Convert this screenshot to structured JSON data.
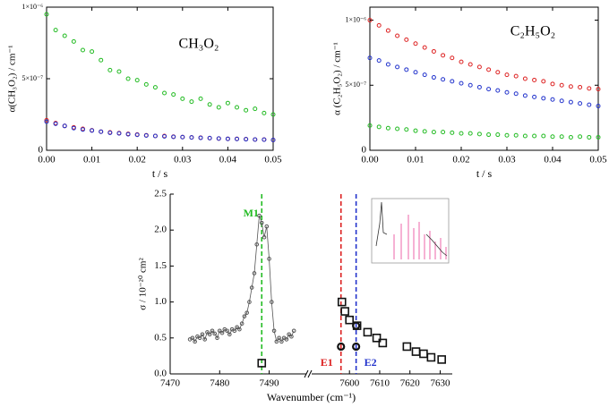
{
  "chart_data": [
    {
      "type": "scatter",
      "annotation": "CH₃O₂",
      "xlabel": "t / s",
      "ylabel": "α(CH₃O₂) / cm⁻¹",
      "xlim": [
        0,
        0.05
      ],
      "xticks": [
        {
          "value": 0,
          "label": "0.00"
        },
        0.01,
        0.02,
        0.03,
        0.04,
        0.05
      ],
      "ylim": [
        0,
        1e-06
      ],
      "yticks": [
        0,
        {
          "value": 5e-07,
          "label": "5×10⁻⁷"
        },
        {
          "value": 1e-06,
          "label": "1×10⁻⁶"
        }
      ],
      "x": [
        0,
        0.002,
        0.004,
        0.006,
        0.008,
        0.01,
        0.012,
        0.014,
        0.016,
        0.018,
        0.02,
        0.022,
        0.024,
        0.026,
        0.028,
        0.03,
        0.032,
        0.034,
        0.036,
        0.038,
        0.04,
        0.042,
        0.044,
        0.046,
        0.048,
        0.05
      ],
      "series": [
        {
          "color": "#22bb22",
          "values": [
            9.5e-07,
            8.4e-07,
            8e-07,
            7.6e-07,
            7e-07,
            6.9e-07,
            6.3e-07,
            5.6e-07,
            5.5e-07,
            5e-07,
            4.9e-07,
            4.6e-07,
            4.4e-07,
            4e-07,
            3.9e-07,
            3.6e-07,
            3.4e-07,
            3.6e-07,
            3.2e-07,
            3e-07,
            3.3e-07,
            3e-07,
            2.8e-07,
            2.9e-07,
            2.6e-07,
            2.5e-07
          ]
        },
        {
          "color": "#dd2222",
          "values": [
            2.1e-07,
            1.9e-07,
            1.7e-07,
            1.6e-07,
            1.5e-07,
            1.4e-07,
            1.3e-07,
            1.25e-07,
            1.2e-07,
            1.15e-07,
            1.1e-07,
            1.05e-07,
            1e-07,
            1e-07,
            9.5e-08,
            9.2e-08,
            9e-08,
            8.8e-08,
            8.5e-08,
            8.2e-08,
            8e-08,
            8e-08,
            7.8e-08,
            7.5e-08,
            7.5e-08,
            7.2e-08
          ]
        },
        {
          "color": "#2233cc",
          "values": [
            2e-07,
            1.85e-07,
            1.7e-07,
            1.55e-07,
            1.45e-07,
            1.38e-07,
            1.3e-07,
            1.22e-07,
            1.18e-07,
            1.12e-07,
            1.08e-07,
            1.03e-07,
            1e-07,
            9.7e-08,
            9.4e-08,
            9.2e-08,
            9e-08,
            8.7e-08,
            8.5e-08,
            8.2e-08,
            8e-08,
            7.9e-08,
            7.7e-08,
            7.5e-08,
            7.4e-08,
            7.2e-08
          ]
        }
      ]
    },
    {
      "type": "scatter",
      "annotation": "C₂H₅O₂",
      "xlabel": "t / s",
      "ylabel": "α (C₂H₅O₂) / cm⁻¹",
      "xlim": [
        0,
        0.05
      ],
      "xticks": [
        {
          "value": 0,
          "label": "0.00"
        },
        0.01,
        0.02,
        0.03,
        0.04,
        0.05
      ],
      "ylim": [
        0,
        1.1e-06
      ],
      "yticks": [
        0,
        {
          "value": 5e-07,
          "label": "5×10⁻⁷"
        },
        {
          "value": 1e-06,
          "label": "1×10⁻⁶"
        }
      ],
      "x": [
        0,
        0.002,
        0.004,
        0.006,
        0.008,
        0.01,
        0.012,
        0.014,
        0.016,
        0.018,
        0.02,
        0.022,
        0.024,
        0.026,
        0.028,
        0.03,
        0.032,
        0.034,
        0.036,
        0.038,
        0.04,
        0.042,
        0.044,
        0.046,
        0.048,
        0.05
      ],
      "series": [
        {
          "color": "#dd2222",
          "values": [
            1e-06,
            9.6e-07,
            9.2e-07,
            8.8e-07,
            8.5e-07,
            8.2e-07,
            7.9e-07,
            7.6e-07,
            7.3e-07,
            7.1e-07,
            6.8e-07,
            6.6e-07,
            6.4e-07,
            6.2e-07,
            6e-07,
            5.8e-07,
            5.7e-07,
            5.5e-07,
            5.4e-07,
            5.3e-07,
            5.1e-07,
            5e-07,
            4.9e-07,
            4.85e-07,
            4.75e-07,
            4.7e-07
          ]
        },
        {
          "color": "#2233cc",
          "values": [
            7.1e-07,
            6.9e-07,
            6.6e-07,
            6.4e-07,
            6.2e-07,
            6e-07,
            5.8e-07,
            5.6e-07,
            5.45e-07,
            5.3e-07,
            5.15e-07,
            5e-07,
            4.85e-07,
            4.7e-07,
            4.6e-07,
            4.45e-07,
            4.35e-07,
            4.2e-07,
            4.1e-07,
            4e-07,
            3.9e-07,
            3.8e-07,
            3.7e-07,
            3.6e-07,
            3.5e-07,
            3.4e-07
          ]
        },
        {
          "color": "#22bb22",
          "values": [
            1.9e-07,
            1.8e-07,
            1.7e-07,
            1.65e-07,
            1.6e-07,
            1.5e-07,
            1.45e-07,
            1.4e-07,
            1.4e-07,
            1.35e-07,
            1.3e-07,
            1.3e-07,
            1.25e-07,
            1.2e-07,
            1.2e-07,
            1.15e-07,
            1.15e-07,
            1.1e-07,
            1.1e-07,
            1.1e-07,
            1.05e-07,
            1.05e-07,
            1e-07,
            1.05e-07,
            1e-07,
            1e-07
          ]
        }
      ]
    },
    {
      "type": "broken-scatter",
      "xlabel": "Wavenumber (cm⁻¹)",
      "ylabel": "σ / 10⁻²⁰ cm²",
      "x_segments": [
        {
          "xlim": [
            7470,
            7497.5
          ],
          "xticks": [
            7470,
            7480,
            7490
          ]
        },
        {
          "xlim": [
            7587.5,
            7634
          ],
          "xticks": [
            7600,
            7610,
            7620,
            7630
          ]
        }
      ],
      "ylim": [
        0,
        2.5
      ],
      "yticks": [
        {
          "value": 0,
          "label": "0.0"
        },
        0.5,
        {
          "value": 1,
          "label": "1.0"
        },
        1.5,
        {
          "value": 2,
          "label": "2.0"
        },
        2.5
      ],
      "markers": [
        {
          "label": "M1",
          "x": 7488.5,
          "color": "#22bb22"
        },
        {
          "label": "E1",
          "x": 7597.2,
          "color": "#dd2222"
        },
        {
          "label": "E2",
          "x": 7602.2,
          "color": "#2233cc"
        }
      ],
      "series": [
        {
          "color": "#555555",
          "marker": "circle",
          "line": true,
          "x": [
            7474,
            7474.5,
            7475,
            7475.5,
            7476,
            7476.5,
            7477,
            7477.5,
            7478,
            7478.5,
            7479,
            7479.5,
            7480,
            7480.5,
            7481,
            7481.5,
            7482,
            7482.5,
            7483,
            7483.5,
            7484,
            7484.5,
            7485,
            7485.5,
            7486,
            7486.5,
            7487,
            7487.5,
            7488,
            7488.5,
            7489,
            7489.5,
            7490,
            7490.5,
            7491,
            7491.5,
            7492,
            7492.5,
            7493,
            7493.5,
            7494,
            7494.5,
            7495
          ],
          "values": [
            0.48,
            0.5,
            0.45,
            0.52,
            0.5,
            0.55,
            0.48,
            0.58,
            0.55,
            0.6,
            0.56,
            0.5,
            0.6,
            0.57,
            0.62,
            0.6,
            0.55,
            0.62,
            0.6,
            0.65,
            0.62,
            0.7,
            0.8,
            0.85,
            1.0,
            1.2,
            1.4,
            1.8,
            2.2,
            2.1,
            1.9,
            2.05,
            1.6,
            1.0,
            0.6,
            0.45,
            0.5,
            0.45,
            0.5,
            0.48,
            0.55,
            0.52,
            0.6
          ]
        },
        {
          "color": "#111111",
          "marker": "square",
          "x": [
            7488.5,
            7597.5,
            7598.5,
            7600,
            7602.5,
            7606,
            7609,
            7611,
            7619,
            7622,
            7624.5,
            7627,
            7630.5
          ],
          "values": [
            0.15,
            1.0,
            0.87,
            0.75,
            0.67,
            0.58,
            0.5,
            0.43,
            0.38,
            0.31,
            0.28,
            0.23,
            0.2
          ]
        },
        {
          "color": "#111111",
          "marker": "ring",
          "x": [
            7597.2,
            7602.2,
            7602.2
          ],
          "values": [
            0.38,
            0.38,
            0.67
          ]
        }
      ]
    }
  ]
}
